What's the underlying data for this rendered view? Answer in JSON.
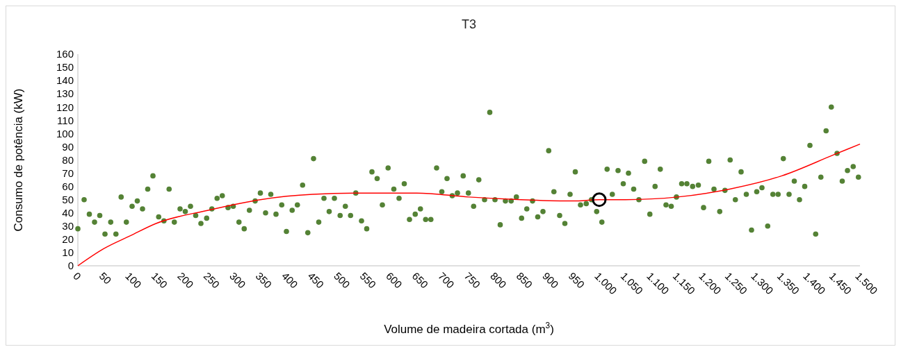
{
  "chart_data": {
    "type": "scatter",
    "title": "T3",
    "xlabel": "Volume de madeira cortada (m$^{3}$)",
    "ylabel": "Consumo de potência (kW)",
    "xlim": [
      0,
      1500
    ],
    "xticks": [
      0,
      50,
      100,
      150,
      200,
      250,
      300,
      350,
      400,
      450,
      500,
      550,
      600,
      650,
      700,
      750,
      800,
      850,
      900,
      950,
      {
        "value": 1000,
        "label": "1.000"
      },
      {
        "value": 1050,
        "label": "1.050"
      },
      {
        "value": 1100,
        "label": "1.100"
      },
      {
        "value": 1150,
        "label": "1.150"
      },
      {
        "value": 1200,
        "label": "1.200"
      },
      {
        "value": 1250,
        "label": "1.250"
      },
      {
        "value": 1300,
        "label": "1.300"
      },
      {
        "value": 1350,
        "label": "1.350"
      },
      {
        "value": 1400,
        "label": "1.400"
      },
      {
        "value": 1450,
        "label": "1.450"
      },
      {
        "value": 1500,
        "label": "1.500"
      }
    ],
    "ylim": [
      0,
      160
    ],
    "yticks": [
      0,
      10,
      20,
      30,
      40,
      50,
      60,
      70,
      80,
      90,
      100,
      110,
      120,
      130,
      140,
      150,
      160
    ],
    "grid": false,
    "marker": "circle",
    "series": [
      {
        "color": "#548235",
        "x": [
          0,
          12,
          22,
          32,
          42,
          52,
          63,
          73,
          83,
          93,
          104,
          114,
          124,
          134,
          144,
          155,
          165,
          175,
          185,
          196,
          206,
          216,
          226,
          236,
          247,
          257,
          267,
          277,
          288,
          298,
          309,
          319,
          329,
          340,
          350,
          360,
          370,
          380,
          391,
          400,
          411,
          421,
          431,
          441,
          452,
          462,
          472,
          482,
          492,
          503,
          513,
          523,
          533,
          544,
          554,
          564,
          574,
          584,
          595,
          606,
          616,
          626,
          636,
          647,
          657,
          667,
          677,
          688,
          698,
          708,
          718,
          728,
          739,
          749,
          759,
          769,
          780,
          790,
          800,
          810,
          820,
          831,
          841,
          851,
          861,
          872,
          882,
          892,
          903,
          913,
          924,
          934,
          944,
          954,
          964,
          975,
          985,
          995,
          1005,
          1015,
          1025,
          1036,
          1046,
          1056,
          1066,
          1076,
          1087,
          1097,
          1107,
          1117,
          1128,
          1138,
          1148,
          1158,
          1168,
          1179,
          1190,
          1200,
          1210,
          1220,
          1231,
          1241,
          1251,
          1261,
          1272,
          1282,
          1292,
          1302,
          1312,
          1323,
          1333,
          1343,
          1353,
          1364,
          1374,
          1384,
          1394,
          1404,
          1415,
          1425,
          1435,
          1445,
          1456,
          1466,
          1476,
          1487,
          1497
        ],
        "values": [
          28,
          50,
          39,
          33,
          38,
          24,
          33,
          24,
          52,
          33,
          45,
          49,
          43,
          58,
          68,
          37,
          34,
          58,
          33,
          43,
          41,
          45,
          38,
          32,
          36,
          43,
          51,
          53,
          44,
          45,
          33,
          28,
          42,
          49,
          55,
          40,
          54,
          39,
          46,
          26,
          42,
          46,
          61,
          25,
          81,
          33,
          51,
          41,
          51,
          38,
          45,
          38,
          55,
          34,
          28,
          71,
          66,
          46,
          74,
          58,
          51,
          62,
          35,
          39,
          43,
          35,
          35,
          74,
          56,
          66,
          53,
          55,
          68,
          55,
          45,
          65,
          50,
          116,
          50,
          31,
          49,
          49,
          52,
          36,
          43,
          49,
          37,
          41,
          87,
          56,
          38,
          32,
          54,
          71,
          46,
          47,
          50,
          41,
          33,
          73,
          54,
          72,
          62,
          70,
          58,
          50,
          79,
          39,
          60,
          73,
          46,
          45,
          52,
          62,
          62,
          60,
          61,
          44,
          79,
          58,
          41,
          57,
          80,
          50,
          71,
          54,
          27,
          56,
          59,
          30,
          54,
          54,
          81,
          54,
          64,
          50,
          60,
          91,
          24,
          67,
          102,
          120,
          85,
          64,
          72,
          75,
          67
        ]
      },
      {
        "type": "line",
        "color": "#ff0000",
        "marker": "none",
        "x": [
          0,
          50,
          100,
          150,
          250,
          350,
          450,
          550,
          650,
          750,
          850,
          950,
          1000,
          1050,
          1150,
          1250,
          1350,
          1450,
          1500
        ],
        "values": [
          0,
          13,
          22.6,
          32,
          42,
          50,
          54,
          55,
          55,
          52,
          50,
          49,
          50,
          50,
          52,
          58,
          68,
          84,
          92
        ]
      },
      {
        "type": "scatter",
        "color": "#000000",
        "line_style": "solid",
        "x": [
          1000
        ],
        "values": [
          50
        ]
      }
    ]
  }
}
